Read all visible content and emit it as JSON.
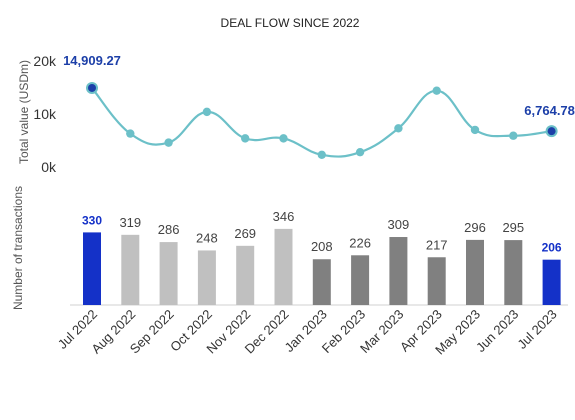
{
  "chart_data": {
    "type": "bar+line",
    "title": "DEAL FLOW SINCE 2022",
    "categories": [
      "Jul 2022",
      "Aug 2022",
      "Sep 2022",
      "Oct 2022",
      "Nov 2022",
      "Dec 2022",
      "Jan 2023",
      "Feb 2023",
      "Mar 2023",
      "Apr 2023",
      "May 2023",
      "Jun 2023",
      "Jul 2023"
    ],
    "line": {
      "ylabel": "Total value (USDm)",
      "ylim": [
        0,
        20000
      ],
      "yticks": [
        "0k",
        "10k",
        "20k"
      ],
      "values": [
        14909.27,
        6300,
        4600,
        10400,
        5400,
        5400,
        2300,
        2800,
        7300,
        14400,
        7000,
        5900,
        6764.78
      ],
      "labels": {
        "first": "14,909.27",
        "last": "6,764.78"
      },
      "color": "#6cc0c8",
      "highlight_color": "#1c3fa8"
    },
    "bars": {
      "ylabel": "Number of transactions",
      "values": [
        330,
        319,
        286,
        248,
        269,
        346,
        208,
        226,
        309,
        217,
        296,
        295,
        206
      ],
      "labels": [
        "330",
        "319",
        "286",
        "248",
        "269",
        "346",
        "208",
        "226",
        "309",
        "217",
        "296",
        "295",
        "206"
      ],
      "colors": [
        "#1431c8",
        "#c0c0c0",
        "#c0c0c0",
        "#c0c0c0",
        "#c0c0c0",
        "#c0c0c0",
        "#808080",
        "#808080",
        "#808080",
        "#808080",
        "#808080",
        "#808080",
        "#1431c8"
      ],
      "highlight": [
        true,
        false,
        false,
        false,
        false,
        false,
        false,
        false,
        false,
        false,
        false,
        false,
        true
      ]
    },
    "grid": false,
    "legend": "none"
  }
}
